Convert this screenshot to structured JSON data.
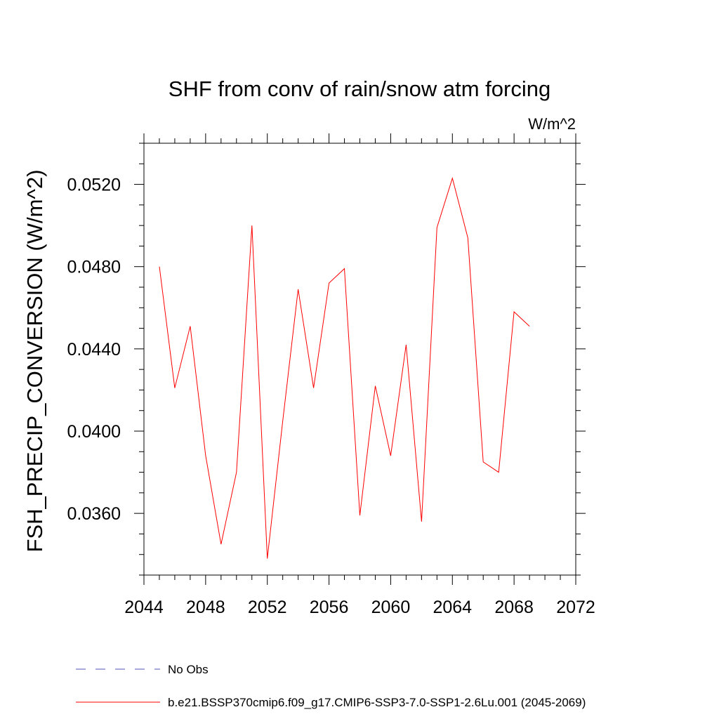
{
  "chart_data": {
    "type": "line",
    "title": "SHF from conv of rain/snow atm forcing",
    "units_label": "W/m^2",
    "xlabel": "",
    "ylabel": "FSH_PRECIP_CONVERSION  (W/m^2)",
    "xlim": [
      2044,
      2072
    ],
    "ylim": [
      0.033,
      0.054
    ],
    "x_ticks": [
      2044,
      2048,
      2052,
      2056,
      2060,
      2064,
      2068,
      2072
    ],
    "x_tick_labels": [
      "2044",
      "2048",
      "2052",
      "2056",
      "2060",
      "2064",
      "2068",
      "2072"
    ],
    "y_ticks": [
      0.036,
      0.04,
      0.044,
      0.048,
      0.052
    ],
    "y_tick_labels": [
      "0.0360",
      "0.0400",
      "0.0440",
      "0.0480",
      "0.0520"
    ],
    "grid": false,
    "legend_position": "bottom",
    "series": [
      {
        "name": "b.e21.BSSP370cmip6.f09_g17.CMIP6-SSP3-7.0-SSP1-2.6Lu.001 (2045-2069)",
        "color": "#ff0000",
        "style": "solid",
        "x": [
          2045,
          2046,
          2047,
          2048,
          2049,
          2050,
          2051,
          2052,
          2053,
          2054,
          2055,
          2056,
          2057,
          2058,
          2059,
          2060,
          2061,
          2062,
          2063,
          2064,
          2065,
          2066,
          2067,
          2068,
          2069
        ],
        "values": [
          0.048,
          0.0421,
          0.0451,
          0.0388,
          0.0345,
          0.038,
          0.05,
          0.0338,
          0.0405,
          0.0469,
          0.0421,
          0.0472,
          0.0479,
          0.0359,
          0.0422,
          0.0388,
          0.0442,
          0.0356,
          0.0499,
          0.0523,
          0.0494,
          0.0385,
          0.038,
          0.0458,
          0.0451
        ]
      }
    ],
    "legend": [
      {
        "label": "No Obs",
        "color": "#5050b4",
        "style": "dashed"
      },
      {
        "label": "b.e21.BSSP370cmip6.f09_g17.CMIP6-SSP3-7.0-SSP1-2.6Lu.001 (2045-2069)",
        "color": "#ff0000",
        "style": "solid"
      }
    ]
  }
}
